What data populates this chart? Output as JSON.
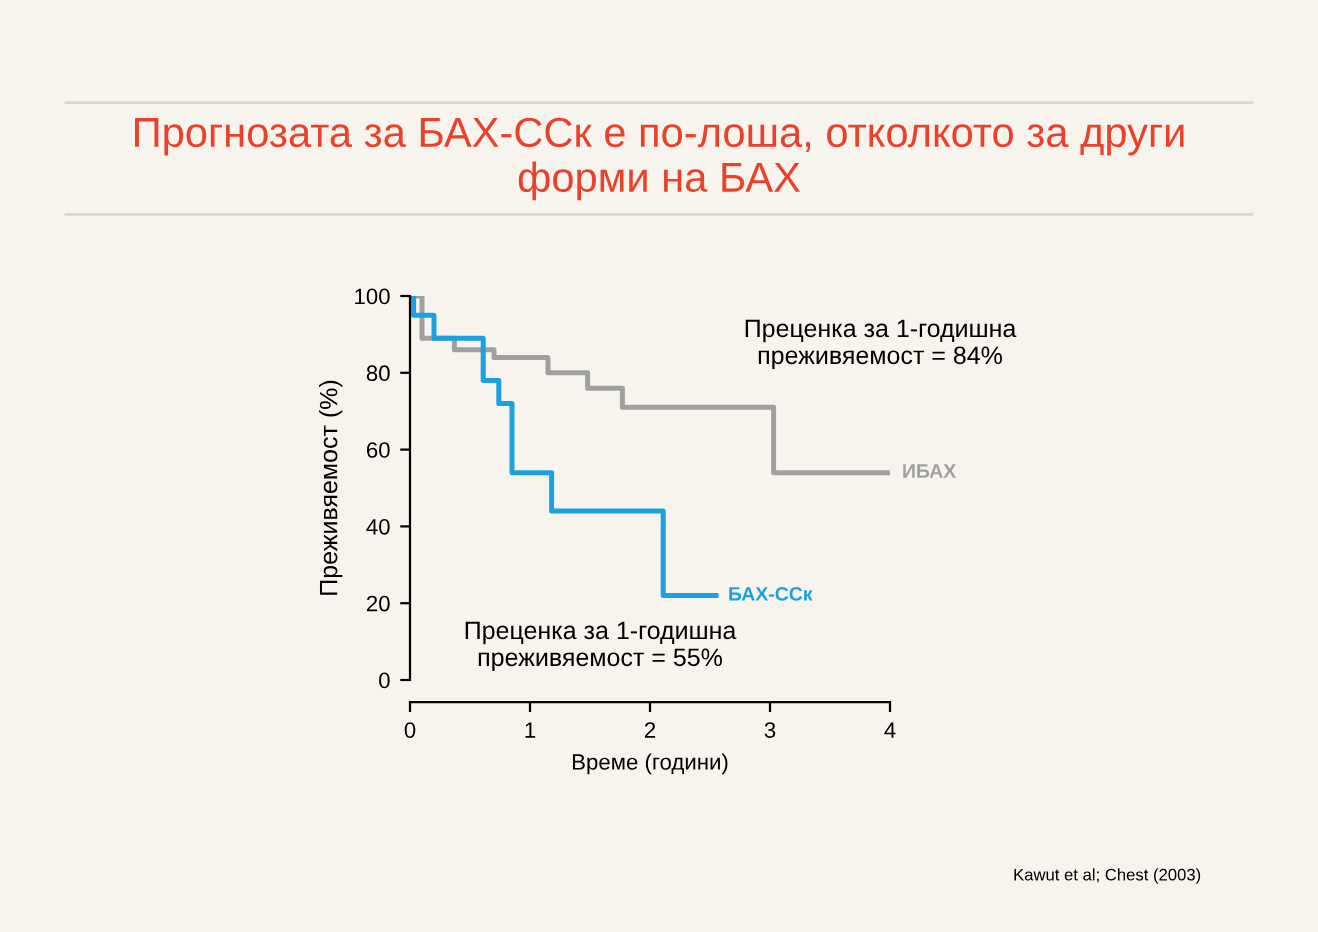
{
  "chart_data": {
    "type": "step",
    "title": "Прогнозата за БАХ-ССк е по-лоша, отколкото за други\nформи на БАХ",
    "xlabel": "Време (години)",
    "ylabel": "Преживяемост (%)",
    "xlim": [
      0,
      4
    ],
    "xticks": [
      0,
      1,
      2,
      3,
      4
    ],
    "ylim": [
      0,
      100
    ],
    "yticks": [
      0,
      20,
      40,
      60,
      80,
      100
    ],
    "grid": false,
    "legend": false,
    "series": [
      {
        "name": "ИБАХ",
        "color": "#a0a0a0",
        "x": [
          0,
          0.1,
          0.37,
          0.7,
          1.15,
          1.48,
          1.77,
          3.03,
          4.0
        ],
        "values": [
          100,
          89,
          86,
          84,
          80,
          76,
          71,
          54,
          54
        ]
      },
      {
        "name": "БАХ-ССк",
        "color": "#1ba1e2",
        "x": [
          0,
          0.03,
          0.2,
          0.61,
          0.74,
          0.85,
          1.18,
          2.11,
          2.55
        ],
        "values": [
          100,
          95,
          89,
          78,
          72,
          54,
          44,
          22,
          22
        ]
      }
    ],
    "annotations": [
      "Преценка за 1-годишна\nпреживяемост = 84%",
      "Преценка за 1-годишна\nпреживяемост = 55%",
      "Kawut et al; Chest (2003)"
    ]
  }
}
